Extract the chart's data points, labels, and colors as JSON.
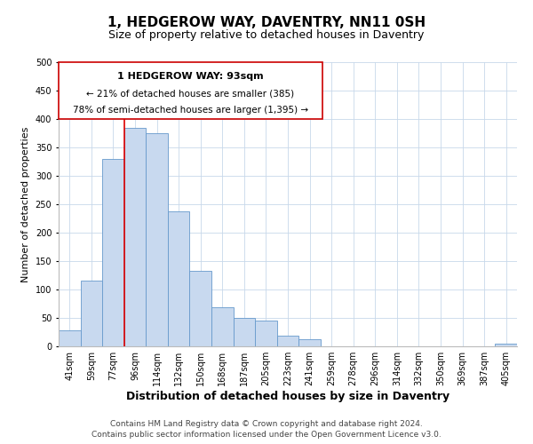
{
  "title": "1, HEDGEROW WAY, DAVENTRY, NN11 0SH",
  "subtitle": "Size of property relative to detached houses in Daventry",
  "xlabel": "Distribution of detached houses by size in Daventry",
  "ylabel": "Number of detached properties",
  "bar_labels": [
    "41sqm",
    "59sqm",
    "77sqm",
    "96sqm",
    "114sqm",
    "132sqm",
    "150sqm",
    "168sqm",
    "187sqm",
    "205sqm",
    "223sqm",
    "241sqm",
    "259sqm",
    "278sqm",
    "296sqm",
    "314sqm",
    "332sqm",
    "350sqm",
    "369sqm",
    "387sqm",
    "405sqm"
  ],
  "bar_values": [
    28,
    116,
    330,
    385,
    375,
    237,
    133,
    68,
    50,
    45,
    18,
    13,
    0,
    0,
    0,
    0,
    0,
    0,
    0,
    0,
    5
  ],
  "bar_color": "#c8d9ef",
  "bar_edge_color": "#6699cc",
  "vline_color": "#dd0000",
  "vline_x_bar_index": 3,
  "annotation_line1": "1 HEDGEROW WAY: 93sqm",
  "annotation_line2": "← 21% of detached houses are smaller (385)",
  "annotation_line3": "78% of semi-detached houses are larger (1,395) →",
  "ylim": [
    0,
    500
  ],
  "yticks": [
    0,
    50,
    100,
    150,
    200,
    250,
    300,
    350,
    400,
    450,
    500
  ],
  "background_color": "#ffffff",
  "grid_color": "#c8d8ea",
  "footer_line1": "Contains HM Land Registry data © Crown copyright and database right 2024.",
  "footer_line2": "Contains public sector information licensed under the Open Government Licence v3.0.",
  "title_fontsize": 11,
  "subtitle_fontsize": 9,
  "xlabel_fontsize": 9,
  "ylabel_fontsize": 8,
  "tick_fontsize": 7,
  "annotation_fontsize_title": 8,
  "annotation_fontsize_body": 7.5,
  "footer_fontsize": 6.5
}
